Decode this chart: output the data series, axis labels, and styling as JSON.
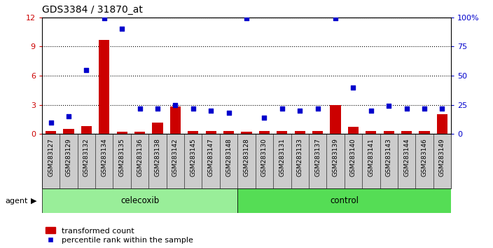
{
  "title": "GDS3384 / 31870_at",
  "samples": [
    "GSM283127",
    "GSM283129",
    "GSM283132",
    "GSM283134",
    "GSM283135",
    "GSM283136",
    "GSM283138",
    "GSM283142",
    "GSM283145",
    "GSM283147",
    "GSM283148",
    "GSM283128",
    "GSM283130",
    "GSM283131",
    "GSM283133",
    "GSM283137",
    "GSM283139",
    "GSM283140",
    "GSM283141",
    "GSM283143",
    "GSM283144",
    "GSM283146",
    "GSM283149"
  ],
  "transformed_count": [
    0.3,
    0.5,
    0.8,
    9.7,
    0.2,
    0.2,
    1.2,
    2.8,
    0.3,
    0.3,
    0.3,
    0.2,
    0.3,
    0.3,
    0.3,
    0.3,
    3.0,
    0.7,
    0.3,
    0.3,
    0.3,
    0.3,
    2.0
  ],
  "percentile_rank": [
    10,
    15,
    55,
    99,
    90,
    22,
    22,
    25,
    22,
    20,
    18,
    99,
    14,
    22,
    20,
    22,
    99,
    40,
    20,
    24,
    22,
    22,
    22
  ],
  "celecoxib_count": 11,
  "total_count": 23,
  "ylim_left": [
    0,
    12
  ],
  "ylim_right": [
    0,
    100
  ],
  "yticks_left": [
    0,
    3,
    6,
    9,
    12
  ],
  "yticks_right": [
    0,
    25,
    50,
    75,
    100
  ],
  "bar_color": "#cc0000",
  "dot_color": "#0000cc",
  "celecoxib_color": "#99ee99",
  "control_color": "#55dd55",
  "xtick_bg": "#cccccc",
  "plot_bg": "#ffffff",
  "legend_bar_label": "transformed count",
  "legend_dot_label": "percentile rank within the sample"
}
